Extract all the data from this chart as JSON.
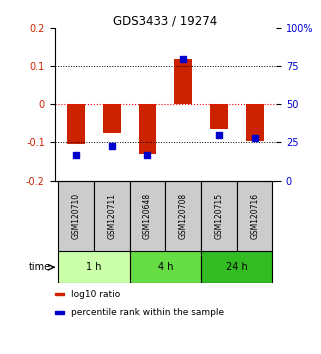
{
  "title": "GDS3433 / 19274",
  "samples": [
    "GSM120710",
    "GSM120711",
    "GSM120648",
    "GSM120708",
    "GSM120715",
    "GSM120716"
  ],
  "log10_ratio": [
    -0.105,
    -0.075,
    -0.13,
    0.12,
    -0.065,
    -0.095
  ],
  "percentile_rank": [
    17,
    23,
    17,
    80,
    30,
    28
  ],
  "ylim_left": [
    -0.2,
    0.2
  ],
  "ylim_right": [
    0,
    100
  ],
  "yticks_left": [
    -0.2,
    -0.1,
    0,
    0.1,
    0.2
  ],
  "yticks_right": [
    0,
    25,
    50,
    75,
    100
  ],
  "ytick_labels_right": [
    "0",
    "25",
    "50",
    "75",
    "100%"
  ],
  "red_color": "#cc2200",
  "blue_color": "#0000cc",
  "time_groups": [
    {
      "label": "1 h",
      "samples": [
        0,
        1
      ],
      "color": "#ccffaa"
    },
    {
      "label": "4 h",
      "samples": [
        2,
        3
      ],
      "color": "#66dd44"
    },
    {
      "label": "24 h",
      "samples": [
        4,
        5
      ],
      "color": "#33bb22"
    }
  ],
  "sample_box_color": "#cccccc",
  "sample_box_edge": "#000000",
  "legend_items": [
    {
      "label": "log10 ratio",
      "color": "#cc2200"
    },
    {
      "label": "percentile rank within the sample",
      "color": "#0000cc"
    }
  ],
  "bar_width": 0.5,
  "dot_size": 18
}
